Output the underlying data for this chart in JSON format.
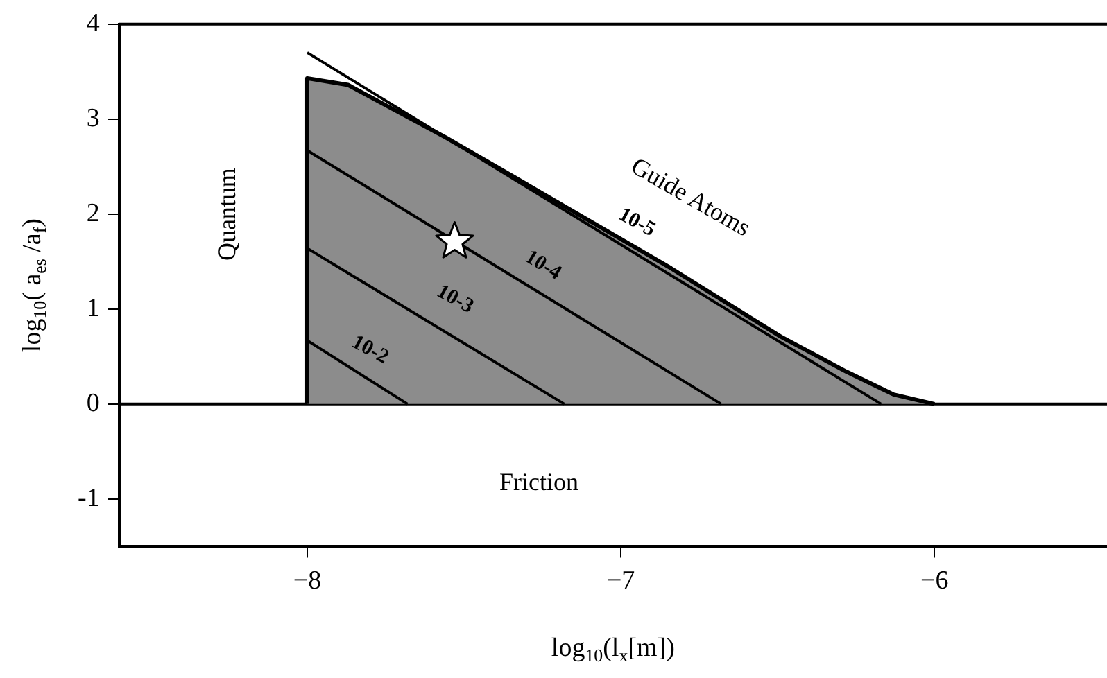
{
  "chart_data": {
    "type": "line",
    "xlabel": "log$_{10}$(l$_{x}$[m])",
    "ylabel": "log$_{10}$( a$_{es}$ /a$_{f}$)",
    "xlim": [
      -8.6,
      -5.45
    ],
    "ylim": [
      -1.5,
      4
    ],
    "xticks": [
      {
        "value": -8,
        "label": "−8"
      },
      {
        "value": -7,
        "label": "−7"
      },
      {
        "value": -6,
        "label": "−6"
      }
    ],
    "yticks": [
      -1,
      0,
      1,
      2,
      3,
      4
    ],
    "grid": false,
    "legend": false,
    "line_style": "solid",
    "series": [
      {
        "type": "area",
        "color": "#8c8c8c",
        "x": [
          -8,
          -8,
          -7.87,
          -7.56,
          -7.34,
          -6.84,
          -6.49,
          -6.28,
          -6.13,
          -6
        ],
        "values": [
          0,
          3.43,
          3.36,
          2.81,
          2.39,
          1.43,
          0.71,
          0.34,
          0.1,
          0
        ]
      },
      {
        "type": "line",
        "color": "#000000",
        "x": [
          -8,
          -6.17
        ],
        "values": [
          3.7,
          0
        ]
      },
      {
        "type": "line",
        "color": "#000000",
        "x": [
          -8,
          -6.68
        ],
        "values": [
          2.67,
          0
        ]
      },
      {
        "type": "line",
        "color": "#000000",
        "x": [
          -8,
          -7.18
        ],
        "values": [
          1.64,
          0
        ]
      },
      {
        "type": "line",
        "color": "#000000",
        "x": [
          -8,
          -7.68
        ],
        "values": [
          0.67,
          0
        ]
      },
      {
        "type": "scatter",
        "marker": "star",
        "color": "#ffffff",
        "x": [
          -7.53
        ],
        "values": [
          1.71
        ]
      }
    ],
    "ref_lines": [
      {
        "axis": "y",
        "value": 0,
        "color": "#000000"
      }
    ],
    "annotations": [
      "Quantum",
      "Friction",
      "Guide Atoms",
      "10-5",
      "10-4",
      "10-3",
      "10-2"
    ]
  }
}
